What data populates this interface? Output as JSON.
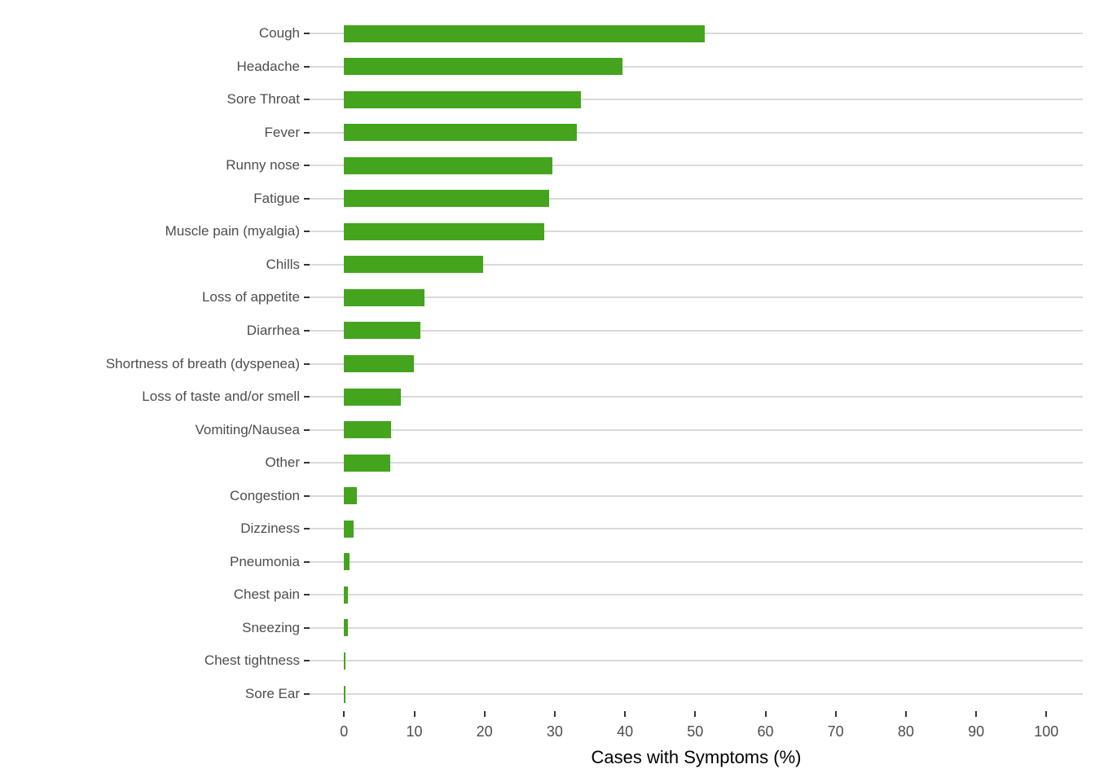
{
  "chart_data": {
    "type": "bar",
    "orientation": "horizontal",
    "title": "",
    "xlabel": "Cases with Symptoms (%)",
    "ylabel": "",
    "xlim": [
      0,
      100
    ],
    "xticks": [
      0,
      10,
      20,
      30,
      40,
      50,
      60,
      70,
      80,
      90,
      100
    ],
    "grid": "horizontal category gridlines only",
    "legend": "none",
    "categories": [
      "Cough",
      "Headache",
      "Sore Throat",
      "Fever",
      "Runny nose",
      "Fatigue",
      "Muscle pain (myalgia)",
      "Chills",
      "Loss of appetite",
      "Diarrhea",
      "Shortness of breath (dyspenea)",
      "Loss of taste and/or smell",
      "Vomiting/Nausea",
      "Other",
      "Congestion",
      "Dizziness",
      "Pneumonia",
      "Chest pain",
      "Sneezing",
      "Chest tightness",
      "Sore Ear"
    ],
    "values": [
      51.3,
      39.6,
      33.7,
      33.2,
      29.7,
      29.2,
      28.5,
      19.8,
      11.5,
      10.9,
      10.0,
      8.1,
      6.7,
      6.6,
      1.8,
      1.3,
      0.75,
      0.6,
      0.5,
      0.15,
      0.15
    ]
  },
  "colors": {
    "bar": "#44A41E",
    "gridline": "#D9D9D9",
    "tick_mark": "#333333",
    "tick_label": "#4D4D4D",
    "axis_title": "#000000",
    "background": "#FFFFFF"
  }
}
